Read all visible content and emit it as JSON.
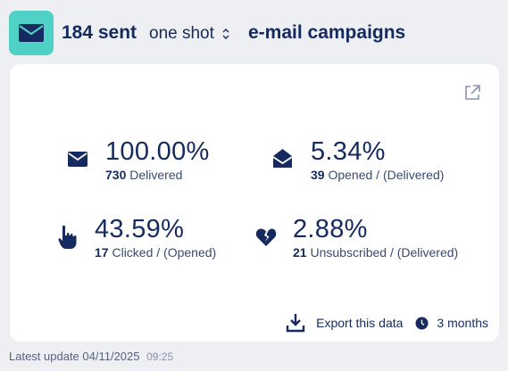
{
  "header": {
    "logo_icon": "envelope-icon",
    "sent_label": "184 sent",
    "mode_label": "one shot",
    "campaigns_label": "e-mail campaigns",
    "accent_color": "#4fd1c5"
  },
  "card": {
    "external_link_icon": "external-link-icon",
    "metrics": [
      {
        "icon": "envelope-icon",
        "value": "100.00%",
        "count": "730",
        "label": "Delivered"
      },
      {
        "icon": "envelope-open-icon",
        "value": "5.34%",
        "count": "39",
        "label": "Opened / (Delivered)"
      },
      {
        "icon": "pointer-hand-icon",
        "value": "43.59%",
        "count": "17",
        "label": "Clicked / (Opened)"
      },
      {
        "icon": "broken-heart-icon",
        "value": "2.88%",
        "count": "21",
        "label": "Unsubscribed / (Delivered)"
      }
    ],
    "actions": {
      "export_label": "Export this data",
      "period_label": "3 months"
    }
  },
  "footer": {
    "updated_label": "Latest update 04/11/2025",
    "updated_time": "09:25"
  }
}
